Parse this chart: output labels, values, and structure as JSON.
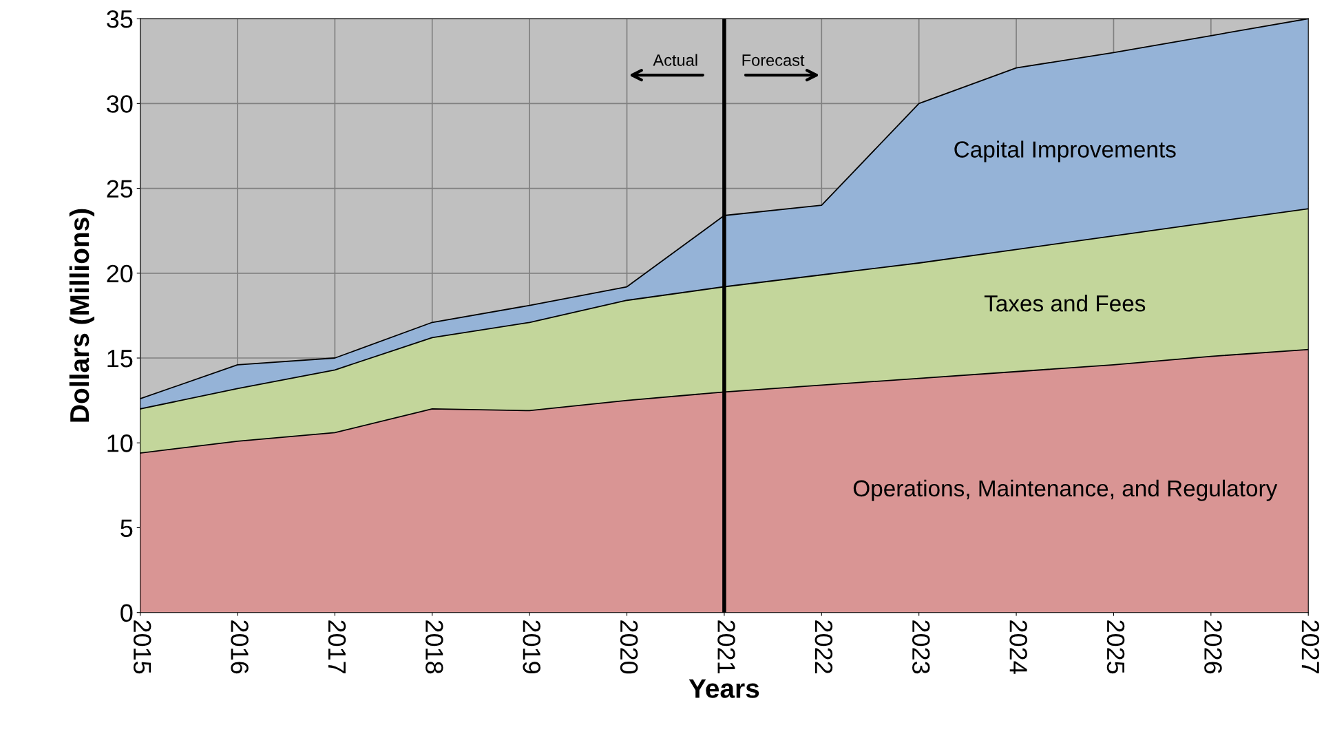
{
  "chart_data": {
    "type": "area",
    "stacked": true,
    "xlabel": "Years",
    "ylabel": "Dollars (Millions)",
    "x": [
      2015,
      2016,
      2017,
      2018,
      2019,
      2020,
      2021,
      2022,
      2023,
      2024,
      2025,
      2026,
      2027
    ],
    "series": [
      {
        "name": "Operations, Maintenance, and Regulatory",
        "color": "#d99594",
        "values": [
          9.4,
          10.1,
          10.6,
          12.0,
          11.9,
          12.5,
          13.0,
          13.4,
          13.8,
          14.2,
          14.6,
          15.1,
          15.5
        ]
      },
      {
        "name": "Taxes and Fees",
        "color": "#c3d69b",
        "values": [
          2.6,
          3.1,
          3.7,
          4.2,
          5.2,
          5.9,
          6.2,
          6.5,
          6.8,
          7.2,
          7.6,
          7.9,
          8.3
        ]
      },
      {
        "name": "Capital Improvements",
        "color": "#95b3d7",
        "values": [
          0.6,
          1.4,
          0.7,
          0.9,
          1.0,
          0.8,
          4.2,
          4.1,
          9.4,
          10.7,
          10.8,
          11.0,
          11.2
        ]
      }
    ],
    "xlim": [
      2015,
      2027
    ],
    "xticks": [
      2015,
      2016,
      2017,
      2018,
      2019,
      2020,
      2021,
      2022,
      2023,
      2024,
      2025,
      2026,
      2027
    ],
    "ylim": [
      0,
      35
    ],
    "yticks": [
      0,
      5,
      10,
      15,
      20,
      25,
      30,
      35
    ],
    "grid": true,
    "ref_lines": [
      {
        "axis": "x",
        "value": 2021,
        "color": "#000000"
      }
    ],
    "annotations": [
      "Actual",
      "Forecast"
    ]
  }
}
